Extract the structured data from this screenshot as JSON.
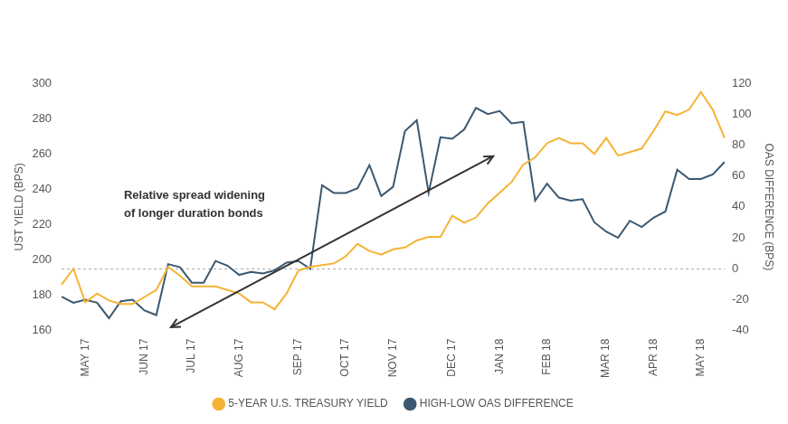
{
  "chart_data": {
    "type": "line",
    "annotation": [
      "Relative spread widening",
      "of longer duration bonds"
    ],
    "y_label": "UST YIELD (BPS)",
    "y2_label": "OAS DIFFERENCE (BPS)",
    "categories": [
      null,
      null,
      "MAY 17",
      null,
      null,
      null,
      null,
      "JUN 17",
      null,
      null,
      null,
      "JUL 17",
      null,
      null,
      null,
      "AUG 17",
      null,
      null,
      null,
      null,
      "SEP 17",
      null,
      null,
      null,
      "OCT 17",
      null,
      null,
      null,
      "NOV 17",
      null,
      null,
      null,
      null,
      "DEC 17",
      null,
      null,
      null,
      "JAN 18",
      null,
      null,
      null,
      "FEB 18",
      null,
      null,
      null,
      null,
      "MAR 18",
      null,
      null,
      null,
      "APR 18",
      null,
      null,
      null,
      "MAY 18",
      null,
      null
    ],
    "series": [
      {
        "name": "5-YEAR U.S. TREASURY YIELD",
        "color": "#f5b335",
        "axis": "y",
        "values": [
          186,
          195,
          176,
          181,
          177,
          175,
          175,
          179,
          183,
          196,
          191,
          185,
          185,
          185,
          183,
          181,
          176,
          176,
          172,
          181,
          194,
          196,
          197,
          198,
          202,
          209,
          205,
          203,
          206,
          207,
          211,
          213,
          213,
          225,
          221,
          224,
          232,
          238,
          244,
          254,
          258,
          266,
          269,
          266,
          266,
          260,
          269,
          259,
          261,
          263,
          273,
          284,
          282,
          285,
          295,
          285,
          269
        ]
      },
      {
        "name": "HIGH-LOW OAS DIFFERENCE",
        "color": "#3b5870",
        "axis": "y2",
        "values": [
          -18,
          -22,
          -20,
          -22,
          -32,
          -21,
          -20,
          -27,
          -30,
          3,
          1,
          -9,
          -9,
          5,
          2,
          -4,
          -2,
          -3,
          -1,
          4,
          5,
          0,
          54,
          49,
          49,
          52,
          67,
          47,
          53,
          89,
          96,
          49,
          85,
          84,
          90,
          104,
          100,
          102,
          94,
          95,
          44,
          55,
          46,
          44,
          45,
          30,
          24,
          20,
          31,
          27,
          33,
          37,
          64,
          58,
          58,
          61,
          69
        ]
      }
    ],
    "ylim": [
      160,
      300
    ],
    "yticks": [
      160,
      180,
      200,
      220,
      240,
      260,
      280,
      300
    ],
    "y2lim": [
      -40,
      120
    ],
    "y2ticks": [
      -40,
      -20,
      0,
      20,
      40,
      60,
      80,
      100,
      120
    ],
    "legend": "bottom",
    "grid": false
  }
}
